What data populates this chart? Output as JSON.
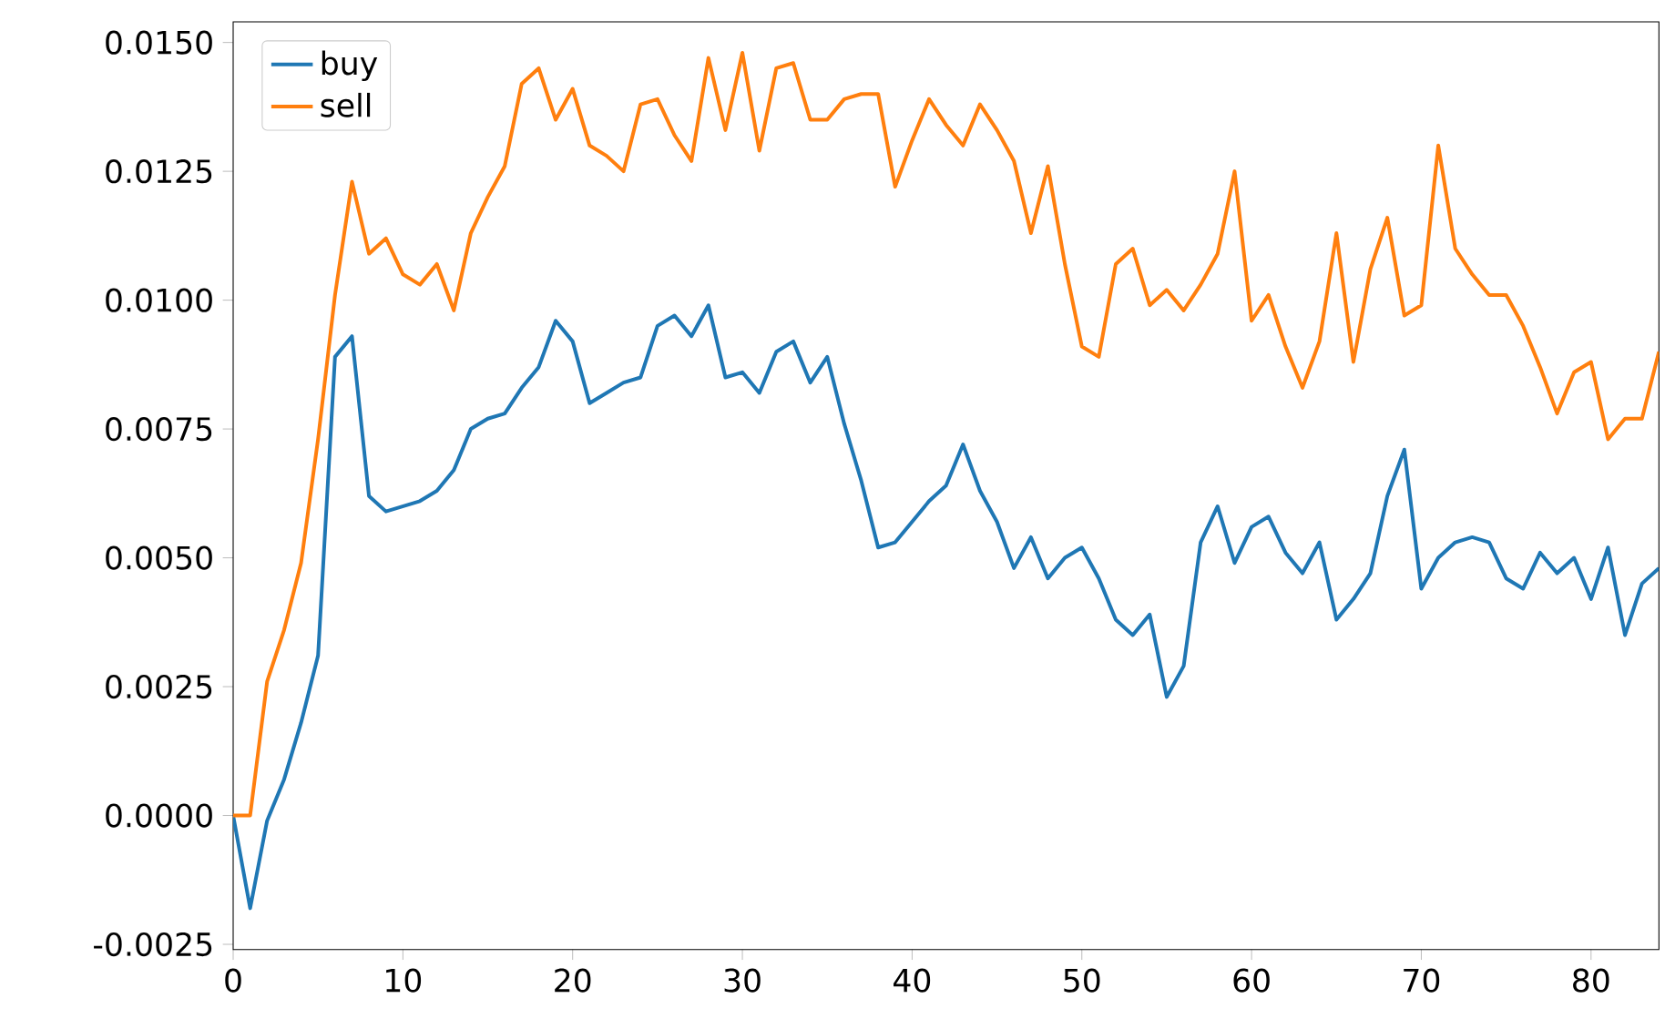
{
  "chart_data": {
    "type": "line",
    "x": [
      0,
      1,
      2,
      3,
      4,
      5,
      6,
      7,
      8,
      9,
      10,
      11,
      12,
      13,
      14,
      15,
      16,
      17,
      18,
      19,
      20,
      21,
      22,
      23,
      24,
      25,
      26,
      27,
      28,
      29,
      30,
      31,
      32,
      33,
      34,
      35,
      36,
      37,
      38,
      39,
      40,
      41,
      42,
      43,
      44,
      45,
      46,
      47,
      48,
      49,
      50,
      51,
      52,
      53,
      54,
      55,
      56,
      57,
      58,
      59,
      60,
      61,
      62,
      63,
      64,
      65,
      66,
      67,
      68,
      69,
      70,
      71,
      72,
      73,
      74,
      75,
      76,
      77,
      78,
      79,
      80,
      81,
      82,
      83,
      84
    ],
    "series": [
      {
        "name": "buy",
        "color": "#1f77b4",
        "values": [
          0.0,
          -0.0018,
          -0.0001,
          0.0007,
          0.0018,
          0.0031,
          0.0089,
          0.0093,
          0.0062,
          0.0059,
          0.006,
          0.0061,
          0.0063,
          0.0067,
          0.0075,
          0.0077,
          0.0078,
          0.0083,
          0.0087,
          0.0096,
          0.0092,
          0.008,
          0.0082,
          0.0084,
          0.0085,
          0.0095,
          0.0097,
          0.0093,
          0.0099,
          0.0085,
          0.0086,
          0.0082,
          0.009,
          0.0092,
          0.0084,
          0.0089,
          0.0076,
          0.0065,
          0.0052,
          0.0053,
          0.0057,
          0.0061,
          0.0064,
          0.0072,
          0.0063,
          0.0057,
          0.0048,
          0.0054,
          0.0046,
          0.005,
          0.0052,
          0.0046,
          0.0038,
          0.0035,
          0.0039,
          0.0023,
          0.0029,
          0.0053,
          0.006,
          0.0049,
          0.0056,
          0.0058,
          0.0051,
          0.0047,
          0.0053,
          0.0038,
          0.0042,
          0.0047,
          0.0062,
          0.0071,
          0.0044,
          0.005,
          0.0053,
          0.0054,
          0.0053,
          0.0046,
          0.0044,
          0.0051,
          0.0047,
          0.005,
          0.0042,
          0.0052,
          0.0035,
          0.0045,
          0.0048
        ]
      },
      {
        "name": "sell",
        "color": "#ff7f0e",
        "values": [
          0.0,
          0.0,
          0.0026,
          0.0036,
          0.0049,
          0.0073,
          0.0101,
          0.0123,
          0.0109,
          0.0112,
          0.0105,
          0.0103,
          0.0107,
          0.0098,
          0.0113,
          0.012,
          0.0126,
          0.0142,
          0.0145,
          0.0135,
          0.0141,
          0.013,
          0.0128,
          0.0125,
          0.0138,
          0.0139,
          0.0132,
          0.0127,
          0.0147,
          0.0133,
          0.0148,
          0.0129,
          0.0145,
          0.0146,
          0.0135,
          0.0135,
          0.0139,
          0.014,
          0.014,
          0.0122,
          0.0131,
          0.0139,
          0.0134,
          0.013,
          0.0138,
          0.0133,
          0.0127,
          0.0113,
          0.0126,
          0.0107,
          0.0091,
          0.0089,
          0.0107,
          0.011,
          0.0099,
          0.0102,
          0.0098,
          0.0103,
          0.0109,
          0.0125,
          0.0096,
          0.0101,
          0.0091,
          0.0083,
          0.0092,
          0.0113,
          0.0088,
          0.0106,
          0.0116,
          0.0097,
          0.0099,
          0.013,
          0.011,
          0.0105,
          0.0101,
          0.0101,
          0.0095,
          0.0087,
          0.0078,
          0.0086,
          0.0088,
          0.0073,
          0.0077,
          0.0077,
          0.009
        ]
      }
    ],
    "xlim": [
      0,
      84
    ],
    "xticks": [
      0,
      10,
      20,
      30,
      40,
      50,
      60,
      70,
      80
    ],
    "ylim": [
      -0.0026,
      0.0154
    ],
    "yticks": [
      {
        "value": -0.0025,
        "label": "-0.0025"
      },
      {
        "value": 0,
        "label": "0.0000"
      },
      {
        "value": 0.0025,
        "label": "0.0025"
      },
      {
        "value": 0.005,
        "label": "0.0050"
      },
      {
        "value": 0.0075,
        "label": "0.0075"
      },
      {
        "value": 0.01,
        "label": "0.0100"
      },
      {
        "value": 0.0125,
        "label": "0.0125"
      },
      {
        "value": 0.015,
        "label": "0.0150"
      }
    ],
    "grid": false,
    "legend": "top left",
    "marker": "none",
    "line_style": "solid"
  }
}
